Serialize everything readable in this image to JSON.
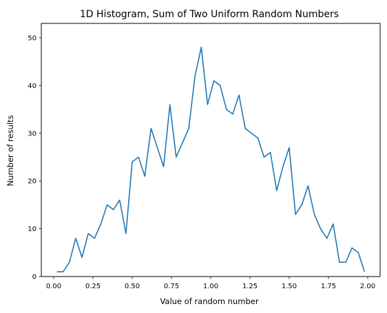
{
  "chart_data": {
    "type": "line",
    "title": "1D Histogram, Sum of Two Uniform Random Numbers",
    "xlabel": "Value of random number",
    "ylabel": "Number of results",
    "xlim": [
      -0.079,
      2.079
    ],
    "ylim": [
      0,
      53
    ],
    "xticks": [
      0.0,
      0.25,
      0.5,
      0.75,
      1.0,
      1.25,
      1.5,
      1.75,
      2.0
    ],
    "xtick_labels": [
      "0.00",
      "0.25",
      "0.50",
      "0.75",
      "1.00",
      "1.25",
      "1.50",
      "1.75",
      "2.00"
    ],
    "yticks": [
      0,
      10,
      20,
      30,
      40,
      50
    ],
    "ytick_labels": [
      "0",
      "10",
      "20",
      "30",
      "40",
      "50"
    ],
    "grid": false,
    "color": "#1f77b4",
    "series": [
      {
        "x": [
          0.02,
          0.06,
          0.1,
          0.14,
          0.18,
          0.22,
          0.26,
          0.3,
          0.34,
          0.38,
          0.42,
          0.46,
          0.5,
          0.54,
          0.58,
          0.62,
          0.66,
          0.7,
          0.74,
          0.78,
          0.82,
          0.86,
          0.9,
          0.94,
          0.98,
          1.02,
          1.06,
          1.1,
          1.14,
          1.18,
          1.22,
          1.26,
          1.3,
          1.34,
          1.38,
          1.42,
          1.46,
          1.5,
          1.54,
          1.58,
          1.62,
          1.66,
          1.7,
          1.74,
          1.78,
          1.82,
          1.86,
          1.9,
          1.94,
          1.98
        ],
        "values": [
          1,
          1,
          3,
          8,
          4,
          9,
          8,
          11,
          15,
          14,
          16,
          9,
          24,
          25,
          21,
          31,
          27,
          23,
          36,
          25,
          28,
          31,
          42,
          48,
          36,
          41,
          40,
          35,
          34,
          38,
          31,
          30,
          29,
          25,
          26,
          18,
          23,
          27,
          13,
          15,
          19,
          13,
          10,
          8,
          11,
          3,
          3,
          6,
          5,
          1
        ]
      }
    ]
  }
}
